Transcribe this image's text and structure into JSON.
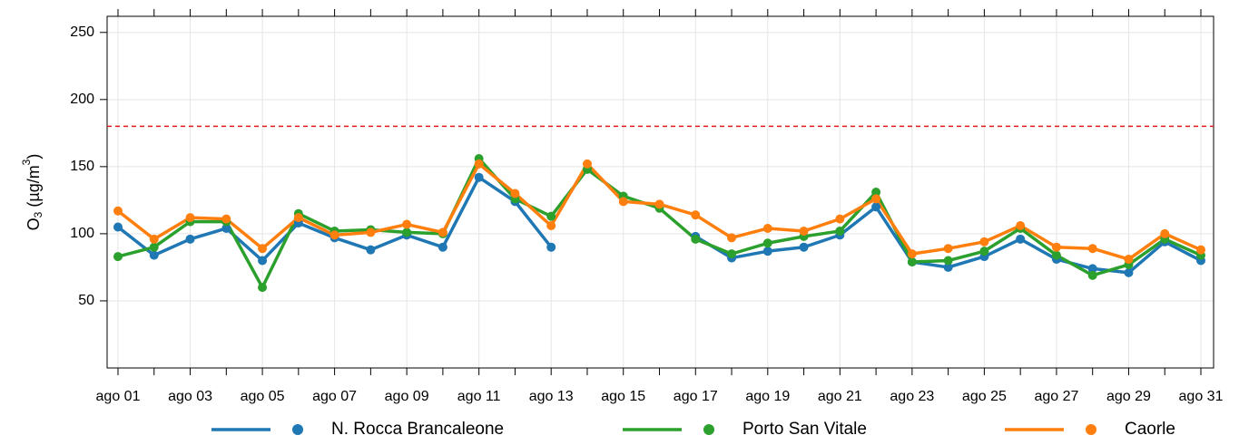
{
  "chart_data": {
    "type": "line",
    "ylabel": {
      "base": "O",
      "sub": "3",
      "mid": " (µg/m",
      "sup": "3",
      "end": ")"
    },
    "categories": [
      "ago 01",
      null,
      "ago 03",
      null,
      "ago 05",
      null,
      "ago 07",
      null,
      "ago 09",
      null,
      "ago 11",
      null,
      "ago 13",
      null,
      "ago 15",
      null,
      "ago 17",
      null,
      "ago 19",
      null,
      "ago 21",
      null,
      "ago 23",
      null,
      "ago 25",
      null,
      "ago 27",
      null,
      "ago 29",
      null,
      "ago 31"
    ],
    "series": [
      {
        "name": "N. Rocca Brancaleone",
        "color": "#1f77b4",
        "values": [
          105,
          84,
          96,
          104,
          80,
          108,
          97,
          88,
          99,
          90,
          142,
          124,
          90,
          null,
          null,
          null,
          98,
          82,
          87,
          90,
          99,
          120,
          79,
          75,
          83,
          96,
          81,
          74,
          71,
          94,
          80
        ]
      },
      {
        "name": "Porto San Vitale",
        "color": "#2ca02c",
        "values": [
          83,
          90,
          109,
          109,
          60,
          115,
          102,
          103,
          101,
          100,
          156,
          126,
          113,
          148,
          128,
          119,
          96,
          85,
          93,
          98,
          102,
          131,
          79,
          80,
          87,
          104,
          84,
          69,
          77,
          96,
          84
        ]
      },
      {
        "name": "Caorle",
        "color": "#ff7f0e",
        "values": [
          117,
          96,
          112,
          111,
          89,
          112,
          99,
          101,
          107,
          101,
          152,
          130,
          106,
          152,
          124,
          122,
          114,
          97,
          104,
          102,
          111,
          126,
          85,
          89,
          94,
          106,
          90,
          89,
          81,
          100,
          88
        ]
      }
    ],
    "threshold": 180,
    "threshold_color": "#e31a1c",
    "ylim": [
      0,
      262
    ],
    "yticks": [
      50,
      100,
      150,
      200,
      250
    ],
    "grid": true,
    "legend": "bottom"
  }
}
